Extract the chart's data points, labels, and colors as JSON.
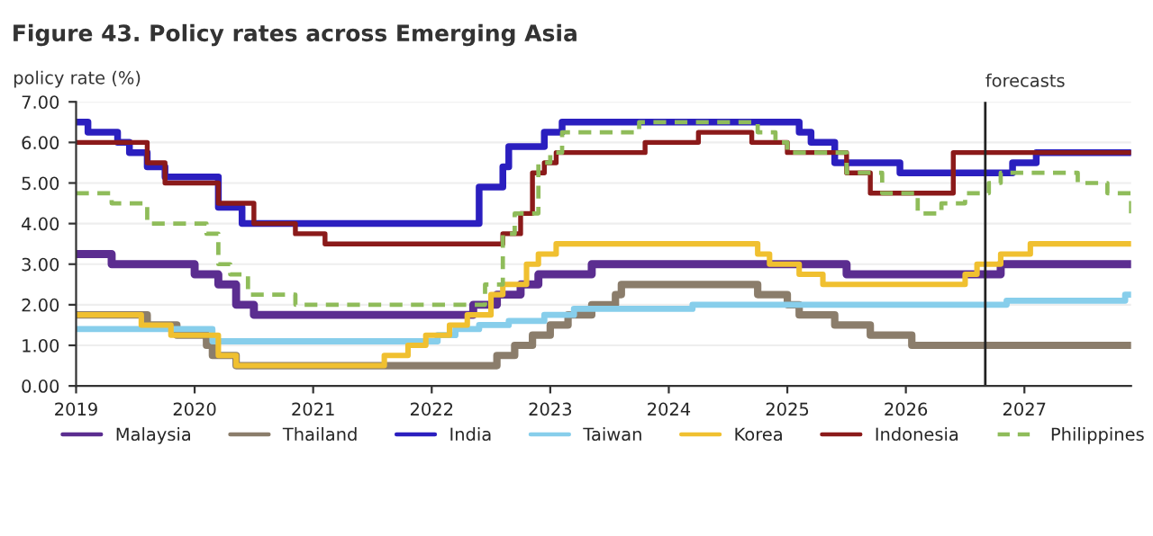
{
  "chart_data": {
    "type": "step",
    "title": "Figure 43. Policy rates across Emerging Asia",
    "ylabel": "policy rate (%)",
    "xlim": [
      2019,
      2027.9
    ],
    "xticks": [
      2019,
      2020,
      2021,
      2022,
      2023,
      2024,
      2025,
      2026,
      2027
    ],
    "ylim": [
      0,
      7
    ],
    "yticks": [
      {
        "value": 0,
        "label": "0.00"
      },
      {
        "value": 1,
        "label": "1.00"
      },
      {
        "value": 2,
        "label": "2.00"
      },
      {
        "value": 3,
        "label": "3.00"
      },
      {
        "value": 4,
        "label": "4.00"
      },
      {
        "value": 5,
        "label": "5.00"
      },
      {
        "value": 6,
        "label": "6.00"
      },
      {
        "value": 7,
        "label": "7.00"
      }
    ],
    "grid": "y",
    "legend": "bottom",
    "ref_lines": [
      {
        "axis": "x",
        "value": 2026.67,
        "label": "forecasts",
        "color": "#222222"
      }
    ],
    "series": [
      {
        "name": "Malaysia",
        "color": "#5b2d90",
        "x": [
          2019.0,
          2019.3,
          2020.0,
          2020.2,
          2020.35,
          2020.5,
          2022.35,
          2022.55,
          2022.75,
          2022.9,
          2023.35,
          2025.5,
          2026.8,
          2027.9
        ],
        "values": [
          3.25,
          3.0,
          2.75,
          2.5,
          2.0,
          1.75,
          2.0,
          2.25,
          2.5,
          2.75,
          3.0,
          2.75,
          3.0,
          3.0
        ]
      },
      {
        "name": "Thailand",
        "color": "#8b7d6b",
        "x": [
          2019.0,
          2019.6,
          2019.85,
          2020.1,
          2020.15,
          2020.35,
          2022.55,
          2022.7,
          2022.85,
          2023.0,
          2023.15,
          2023.35,
          2023.55,
          2023.6,
          2024.75,
          2025.0,
          2025.1,
          2025.4,
          2025.7,
          2026.05,
          2027.9
        ],
        "values": [
          1.75,
          1.5,
          1.25,
          1.0,
          0.75,
          0.5,
          0.75,
          1.0,
          1.25,
          1.5,
          1.75,
          2.0,
          2.25,
          2.5,
          2.25,
          2.0,
          1.75,
          1.5,
          1.25,
          1.0,
          1.0
        ]
      },
      {
        "name": "India",
        "color": "#2b1fbf",
        "x": [
          2019.0,
          2019.1,
          2019.35,
          2019.45,
          2019.6,
          2019.75,
          2020.2,
          2020.4,
          2022.4,
          2022.6,
          2022.65,
          2022.95,
          2023.1,
          2025.1,
          2025.2,
          2025.4,
          2025.95,
          2026.9,
          2027.1,
          2027.9
        ],
        "values": [
          6.5,
          6.25,
          6.0,
          5.75,
          5.4,
          5.15,
          4.4,
          4.0,
          4.9,
          5.4,
          5.9,
          6.25,
          6.5,
          6.25,
          6.0,
          5.5,
          5.25,
          5.5,
          5.75,
          5.75
        ]
      },
      {
        "name": "Taiwan",
        "color": "#87ceeb",
        "x": [
          2019.0,
          2020.15,
          2022.05,
          2022.2,
          2022.4,
          2022.65,
          2022.95,
          2023.2,
          2024.2,
          2026.85,
          2027.85,
          2027.9
        ],
        "values": [
          1.4,
          1.1,
          1.25,
          1.4,
          1.5,
          1.6,
          1.75,
          1.9,
          2.0,
          2.1,
          2.25,
          2.25
        ]
      },
      {
        "name": "Korea",
        "color": "#f0c030",
        "x": [
          2019.0,
          2019.55,
          2019.8,
          2020.2,
          2020.35,
          2021.6,
          2021.8,
          2021.95,
          2022.15,
          2022.3,
          2022.5,
          2022.6,
          2022.8,
          2022.9,
          2023.05,
          2024.75,
          2024.85,
          2025.1,
          2025.3,
          2026.5,
          2026.6,
          2026.8,
          2027.05,
          2027.9
        ],
        "values": [
          1.75,
          1.5,
          1.25,
          0.75,
          0.5,
          0.75,
          1.0,
          1.25,
          1.5,
          1.75,
          2.25,
          2.5,
          3.0,
          3.25,
          3.5,
          3.25,
          3.0,
          2.75,
          2.5,
          2.75,
          3.0,
          3.25,
          3.5,
          3.5
        ]
      },
      {
        "name": "Indonesia",
        "color": "#8b1a1a",
        "x": [
          2019.0,
          2019.6,
          2019.75,
          2020.2,
          2020.5,
          2020.85,
          2021.1,
          2022.6,
          2022.75,
          2022.85,
          2022.95,
          2023.05,
          2023.8,
          2024.25,
          2024.7,
          2025.0,
          2025.5,
          2025.7,
          2026.4,
          2027.9
        ],
        "values": [
          6.0,
          5.5,
          5.0,
          4.5,
          4.0,
          3.75,
          3.5,
          3.75,
          4.25,
          5.25,
          5.5,
          5.75,
          6.0,
          6.25,
          6.0,
          5.75,
          5.25,
          4.75,
          5.75,
          5.75
        ]
      },
      {
        "name": "Philippines",
        "color": "#8fbc5a",
        "line_style": "dashed",
        "x": [
          2019.0,
          2019.3,
          2019.6,
          2020.1,
          2020.2,
          2020.3,
          2020.45,
          2020.85,
          2022.45,
          2022.6,
          2022.7,
          2022.9,
          2023.0,
          2023.1,
          2023.75,
          2024.75,
          2024.9,
          2025.0,
          2025.5,
          2025.8,
          2026.1,
          2026.3,
          2026.5,
          2026.7,
          2026.8,
          2027.45,
          2027.7,
          2027.9
        ],
        "values": [
          4.75,
          4.5,
          4.0,
          3.75,
          3.0,
          2.75,
          2.25,
          2.0,
          2.5,
          3.75,
          4.25,
          5.5,
          5.75,
          6.25,
          6.5,
          6.25,
          6.0,
          5.75,
          5.25,
          4.75,
          4.25,
          4.5,
          4.75,
          5.0,
          5.25,
          5.0,
          4.75,
          4.25
        ]
      }
    ]
  }
}
